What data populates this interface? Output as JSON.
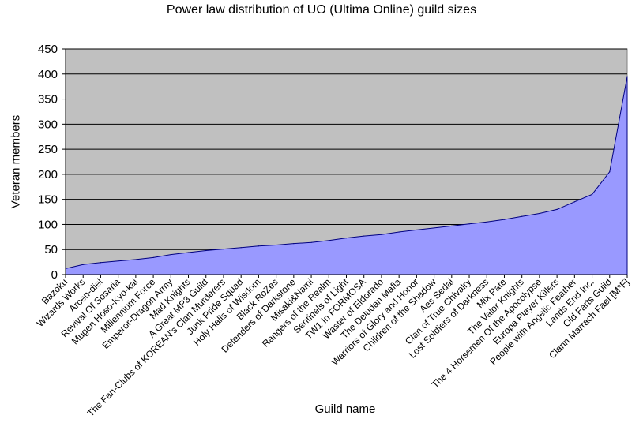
{
  "chart_data": {
    "type": "area",
    "title": "Power law distribution of UO (Ultima Online) guild sizes",
    "xlabel": "Guild name",
    "ylabel": "Veteran members",
    "ylim": [
      0,
      450
    ],
    "yticks": [
      0,
      50,
      100,
      150,
      200,
      250,
      300,
      350,
      400,
      450
    ],
    "grid": true,
    "legend": "none",
    "colors": {
      "plot_background": "#c0c0c0",
      "fill": "#9999ff",
      "line": "#000080"
    },
    "categories": [
      "Bazoku",
      "Wizards Works",
      "Arcen-diel",
      "Revival Of Sosaria",
      "Mugen Hoso-Kyo-kai",
      "Millennium Force",
      "Emperor-Dragon Army",
      "Mad Knights",
      "A Great MP3 Guild",
      "The Fan-Clubs of KOREAN's Clan Murderers",
      "Junk Pride Squad",
      "Holy Halls of Wisdom",
      "Black RoZes",
      "Defenders of Darkstone",
      "Misaki&Nami",
      "Rangers of the Realm",
      "Sentinels of Light",
      "TW1 In FORMOSA",
      "Waster of Eldorado",
      "The Deludan Mafia",
      "Warriors of Glory and Honor",
      "Children of the Shadow",
      "Aes Sedai",
      "Clan of True Chivalry",
      "Lost Soldiers of Darkness",
      "Mix Pate",
      "The Valor Knights",
      "The 4 Horsemen Of the Apocolypse",
      "Europa Player Killers",
      "People with Angelic Feather",
      "Lands End Inc.",
      "Old Farts Guild",
      "Clann Marrach Fael [M*F]"
    ],
    "values": [
      12,
      20,
      24,
      27,
      30,
      34,
      40,
      44,
      48,
      51,
      54,
      57,
      59,
      62,
      64,
      68,
      73,
      77,
      80,
      85,
      89,
      93,
      97,
      101,
      105,
      110,
      116,
      122,
      130,
      145,
      160,
      205,
      395
    ]
  }
}
